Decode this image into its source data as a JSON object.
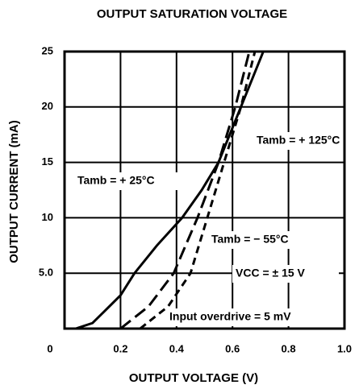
{
  "chart_data": {
    "type": "line",
    "title": "OUTPUT SATURATION VOLTAGE",
    "x_label": "OUTPUT VOLTAGE (V)",
    "y_label": "OUTPUT CURRENT (mA)",
    "xlim": [
      0,
      1
    ],
    "ylim": [
      0,
      25
    ],
    "xticks": [
      0,
      0.2,
      0.4,
      0.6,
      0.8,
      {
        "value": 1,
        "label": "1.0"
      }
    ],
    "yticks": [
      {
        "value": 5,
        "label": "5.0"
      },
      10,
      15,
      20,
      25
    ],
    "grid": true,
    "series": [
      {
        "name": "Tamb = + 125°C",
        "color": "#000000",
        "dash": "solid",
        "x": [
          0.04,
          0.1,
          0.2,
          0.25,
          0.33,
          0.42,
          0.49,
          0.55,
          0.63,
          0.71
        ],
        "values": [
          0,
          0.5,
          3,
          5,
          7.5,
          10,
          12.5,
          15,
          20,
          25
        ]
      },
      {
        "name": "Tamb = + 25°C",
        "color": "#000000",
        "dash": "long",
        "x": [
          0.2,
          0.3,
          0.39,
          0.475,
          0.55,
          0.61,
          0.66
        ],
        "values": [
          0,
          2,
          5,
          10,
          15,
          20,
          25
        ]
      },
      {
        "name": "Tamb = − 55°C",
        "color": "#000000",
        "dash": "short",
        "x": [
          0.27,
          0.37,
          0.45,
          0.51,
          0.57,
          0.63,
          0.68
        ],
        "values": [
          0,
          2,
          5,
          10,
          15,
          20,
          25
        ]
      }
    ],
    "annotations": [
      "VCC = ± 15 V",
      "Input overdrive = 5 mV"
    ]
  }
}
